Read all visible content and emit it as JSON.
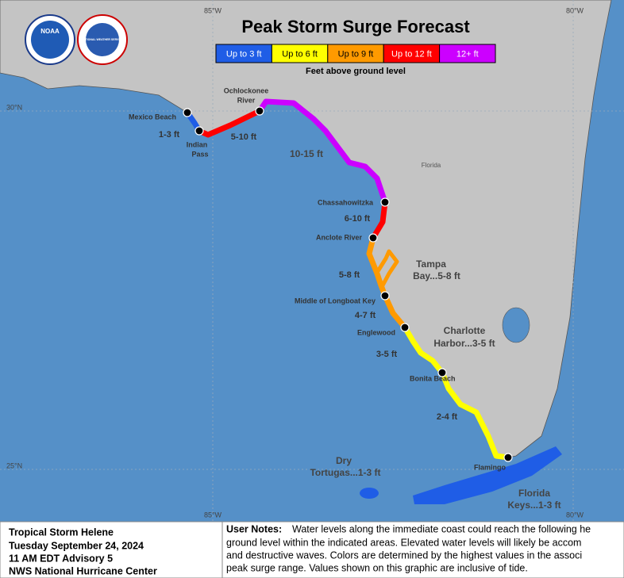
{
  "header": {
    "title": "Peak Storm Surge Forecast",
    "subtitle": "Feet above ground level",
    "logo_noaa": "NOAA",
    "logo_nws": "NATIONAL WEATHER SERVICE"
  },
  "legend": [
    {
      "label": "Up to 3 ft",
      "color": "#1f5de6"
    },
    {
      "label": "Up to 6 ft",
      "color": "#ffff00"
    },
    {
      "label": "Up to 9 ft",
      "color": "#ff9a00"
    },
    {
      "label": "Up to 12 ft",
      "color": "#ff0000"
    },
    {
      "label": "12+ ft",
      "color": "#cc00ff"
    }
  ],
  "grid_labels": {
    "lon_85_top": "85°W",
    "lon_80_top": "80°W",
    "lat_30": "30°N",
    "lat_25": "25°N",
    "lon_85_bottom": "85°W",
    "lon_80_bottom": "80°W"
  },
  "places": {
    "ochlockonee": [
      "Ochlockonee",
      "River"
    ],
    "mexico_beach": "Mexico Beach",
    "indian_pass": [
      "Indian",
      "Pass"
    ],
    "florida": "Florida",
    "chassahowitzka": "Chassahowitzka",
    "anclote": "Anclote River",
    "longboat": "Middle of Longboat Key",
    "englewood": "Englewood",
    "bonita": "Bonita Beach",
    "flamingo": "Flamingo"
  },
  "surge": {
    "s1": "1-3 ft",
    "s2": "5-10 ft",
    "s3": "10-15 ft",
    "s4": "6-10 ft",
    "s5": "5-8 ft",
    "tampa": [
      "Tampa",
      "Bay...5-8 ft"
    ],
    "s6": "4-7 ft",
    "charlotte": [
      "Charlotte",
      "Harbor...3-5 ft"
    ],
    "s7": "3-5 ft",
    "s8": "2-4 ft",
    "tortugas": [
      "Dry",
      "Tortugas...1-3 ft"
    ],
    "keys": [
      "Florida",
      "Keys...1-3 ft"
    ]
  },
  "info": {
    "lines": [
      "Tropical Storm Helene",
      "Tuesday September 24, 2024",
      "11 AM EDT Advisory 5",
      "NWS National Hurricane Center"
    ]
  },
  "notes": {
    "label": "User Notes:",
    "lines": [
      "Water levels along the immediate coast could reach the following he",
      "ground level within the indicated areas. Elevated water levels will likely be accom",
      "and destructive waves. Colors are determined by the highest values in the associ",
      "peak surge range. Values shown on this graphic are inclusive of tide."
    ]
  }
}
